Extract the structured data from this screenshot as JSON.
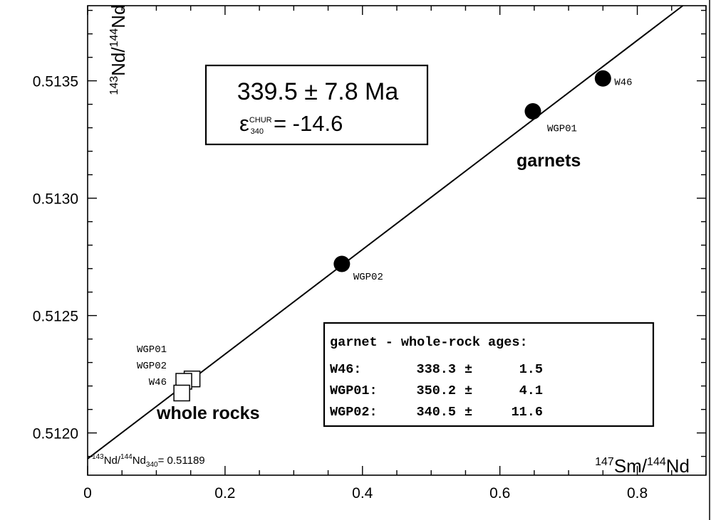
{
  "chart_data": {
    "type": "scatter",
    "xlim": [
      0,
      0.9
    ],
    "ylim": [
      0.51182,
      0.51382
    ],
    "x_ticks": [
      {
        "value": 0,
        "label": "0"
      },
      {
        "value": 0.2,
        "label": "0.2"
      },
      {
        "value": 0.4,
        "label": "0.4"
      },
      {
        "value": 0.6,
        "label": "0.6"
      },
      {
        "value": 0.8,
        "label": "0.8"
      }
    ],
    "y_ticks": [
      {
        "value": 0.512,
        "label": "0.5120"
      },
      {
        "value": 0.5125,
        "label": "0.5125"
      },
      {
        "value": 0.513,
        "label": "0.5130"
      },
      {
        "value": 0.5135,
        "label": "0.5135"
      }
    ],
    "x_minor_step": 0.05,
    "y_minor_step": 0.0001,
    "grid": false,
    "axis_titles": {
      "x": {
        "sup1": "147",
        "el1": "Sm/",
        "sup2": "144",
        "el2": "Nd"
      },
      "y": {
        "sup1": "143",
        "el1": "Nd/",
        "sup2": "144",
        "el2": "Nd"
      }
    },
    "isochron": {
      "intercept": 0.51189,
      "slope": 0.002228,
      "intercept_label": {
        "sup1": "143",
        "el1": "Nd/",
        "sup2": "144",
        "el2": "Nd",
        "sub": "340",
        "rest": "= 0.51189"
      }
    },
    "age_box": {
      "age": "339.5 ± 7.8 Ma",
      "epsilon_symbol": "ε",
      "epsilon_sup": "CHUR",
      "epsilon_sub": "340",
      "epsilon_value": "= -14.6"
    },
    "series": [
      {
        "name": "garnets",
        "marker": "filled-circle",
        "points": [
          {
            "label": "W46",
            "x": 0.75,
            "y": 0.51351
          },
          {
            "label": "WGP01",
            "x": 0.648,
            "y": 0.51337
          },
          {
            "label": "WGP02",
            "x": 0.37,
            "y": 0.51272
          }
        ]
      },
      {
        "name": "whole rocks",
        "marker": "open-square",
        "points": [
          {
            "label": "WGP01",
            "x": 0.152,
            "y": 0.51223
          },
          {
            "label": "WGP02",
            "x": 0.14,
            "y": 0.51222
          },
          {
            "label": "W46",
            "x": 0.137,
            "y": 0.51217
          }
        ]
      }
    ],
    "ages_table": {
      "title": "garnet - whole-rock ages:",
      "rows": [
        {
          "sample": "W46:",
          "age": "338.3",
          "pm": "±",
          "err": "1.5"
        },
        {
          "sample": "WGP01:",
          "age": "350.2",
          "pm": "±",
          "err": "4.1"
        },
        {
          "sample": "WGP02:",
          "age": "340.5",
          "pm": "±",
          "err": "11.6"
        }
      ]
    }
  }
}
